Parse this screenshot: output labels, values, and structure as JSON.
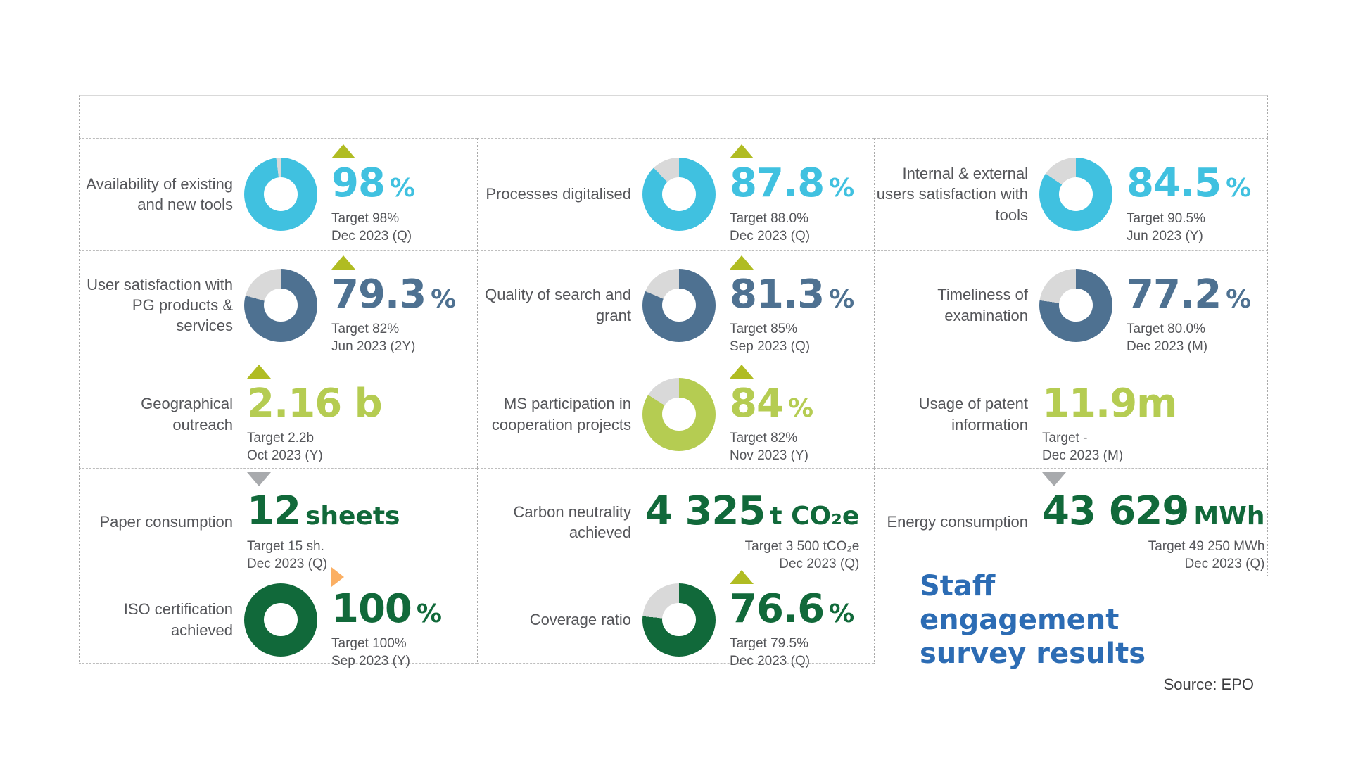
{
  "palette": {
    "cyan": "#40c1e0",
    "slate": "#4e7191",
    "light_green": "#b5cc52",
    "dark_green": "#11693a",
    "olive_up_triangle": "#b0bc22",
    "gray_down_triangle": "#a8aaad",
    "orange_flat_triangle": "#fbaf63",
    "donut_track": "#d9d9d9",
    "heading_blue": "#2c6cb4"
  },
  "chart_data": {
    "type": "kpi-donut-grid",
    "grid": {
      "rows": 5,
      "cols": 3
    },
    "tiles": [
      {
        "label": "Availability of existing and new tools",
        "value": "98",
        "unit": "%",
        "value_color": "#40c1e0",
        "target": "Target 98%",
        "period": "Dec 2023 (Q)",
        "indicator": {
          "dir": "up",
          "color": "#b0bc22"
        },
        "donut": {
          "percent": 98,
          "color": "#40c1e0",
          "track": "#d9d9d9"
        }
      },
      {
        "label": "Processes digitalised",
        "value": "87.8",
        "unit": "%",
        "value_color": "#40c1e0",
        "target": "Target 88.0%",
        "period": "Dec 2023 (Q)",
        "indicator": {
          "dir": "up",
          "color": "#b0bc22"
        },
        "donut": {
          "percent": 87.8,
          "color": "#40c1e0",
          "track": "#d9d9d9"
        }
      },
      {
        "label": "Internal & external users satisfaction with tools",
        "value": "84.5",
        "unit": "%",
        "value_color": "#40c1e0",
        "target": "Target 90.5%",
        "period": "Jun 2023 (Y)",
        "indicator": {
          "dir": "none",
          "color": ""
        },
        "donut": {
          "percent": 84.5,
          "color": "#40c1e0",
          "track": "#d9d9d9"
        }
      },
      {
        "label": "User satisfaction with PG products & services",
        "value": "79.3",
        "unit": "%",
        "value_color": "#4e7191",
        "target": "Target 82%",
        "period": "Jun 2023 (2Y)",
        "indicator": {
          "dir": "up",
          "color": "#b0bc22"
        },
        "donut": {
          "percent": 79.3,
          "color": "#4e7191",
          "track": "#d9d9d9"
        }
      },
      {
        "label": "Quality of search and grant",
        "value": "81.3",
        "unit": "%",
        "value_color": "#4e7191",
        "target": "Target 85%",
        "period": "Sep 2023 (Q)",
        "indicator": {
          "dir": "up",
          "color": "#b0bc22"
        },
        "donut": {
          "percent": 81.3,
          "color": "#4e7191",
          "track": "#d9d9d9"
        }
      },
      {
        "label": "Timeliness of examination",
        "value": "77.2",
        "unit": "%",
        "value_color": "#4e7191",
        "target": "Target 80.0%",
        "period": "Dec 2023 (M)",
        "indicator": {
          "dir": "none",
          "color": ""
        },
        "donut": {
          "percent": 77.2,
          "color": "#4e7191",
          "track": "#d9d9d9"
        }
      },
      {
        "label": "Geographical outreach",
        "value": "2.16 b",
        "unit": "",
        "value_color": "#b5cc52",
        "target": "Target 2.2b",
        "period": "Oct 2023 (Y)",
        "indicator": {
          "dir": "up",
          "color": "#b0bc22"
        },
        "donut": null
      },
      {
        "label": "MS participation in cooperation projects",
        "value": "84",
        "unit": "%",
        "value_color": "#b5cc52",
        "target": "Target 82%",
        "period": "Nov 2023 (Y)",
        "indicator": {
          "dir": "up",
          "color": "#b0bc22"
        },
        "donut": {
          "percent": 84,
          "color": "#b5cc52",
          "track": "#d9d9d9"
        }
      },
      {
        "label": "Usage of patent information",
        "value": "11.9m",
        "unit": "",
        "value_color": "#b5cc52",
        "target": "Target -",
        "period": "Dec 2023 (M)",
        "indicator": {
          "dir": "none",
          "color": ""
        },
        "donut": null
      },
      {
        "label": "Paper consumption",
        "value": "12",
        "unit": "sheets",
        "value_color": "#11693a",
        "target": "Target 15 sh.",
        "period": "Dec 2023 (Q)",
        "indicator": {
          "dir": "down",
          "color": "#a8aaad"
        },
        "donut": null
      },
      {
        "label": "Carbon neutrality achieved",
        "value": "4 325",
        "unit": "t CO₂e",
        "value_color": "#11693a",
        "target": "Target 3 500 tCO₂e",
        "period": "Dec 2023 (Q)",
        "indicator": {
          "dir": "none",
          "color": ""
        },
        "donut": null
      },
      {
        "label": "Energy consumption",
        "value": "43 629",
        "unit": "MWh",
        "value_color": "#11693a",
        "target": "Target 49 250 MWh",
        "period": "Dec 2023 (Q)",
        "indicator": {
          "dir": "down",
          "color": "#a8aaad"
        },
        "donut": null
      },
      {
        "label": "ISO certification achieved",
        "value": "100",
        "unit": "%",
        "value_color": "#11693a",
        "target": "Target 100%",
        "period": "Sep 2023 (Y)",
        "indicator": {
          "dir": "right",
          "color": "#fbaf63"
        },
        "donut": {
          "percent": 100,
          "color": "#11693a",
          "track": "#d9d9d9"
        }
      },
      {
        "label": "Coverage ratio",
        "value": "76.6",
        "unit": "%",
        "value_color": "#11693a",
        "target": "Target 79.5%",
        "period": "Dec 2023 (Q)",
        "indicator": {
          "dir": "up",
          "color": "#b0bc22"
        },
        "donut": {
          "percent": 76.6,
          "color": "#11693a",
          "track": "#d9d9d9"
        }
      }
    ]
  },
  "staff_heading": {
    "text": "Staff engagement survey results",
    "color": "#2c6cb4"
  },
  "source": "Source: EPO"
}
